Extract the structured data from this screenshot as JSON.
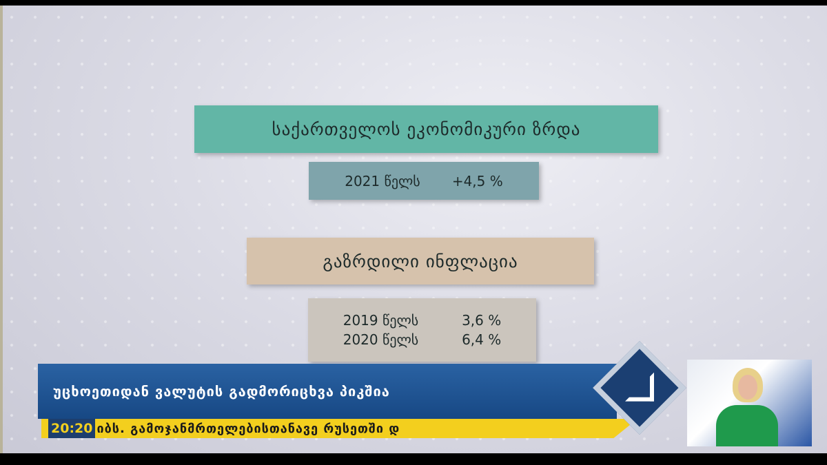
{
  "growth": {
    "title": "საქართველოს ეკონომიკური ზრდა",
    "year": "2021 წელს",
    "value": "+4,5 %"
  },
  "inflation": {
    "title": "გაზრდილი ინფლაცია",
    "rows": [
      {
        "year": "2019 წელს",
        "value": "3,6 %"
      },
      {
        "year": "2020 წელს",
        "value": "6,4 %"
      }
    ]
  },
  "lower_third": {
    "headline": "უცხოეთიდან ვალუტის გადმორიცხვა პიკშია",
    "time": "20:20",
    "ticker": "იბს. გამოჯანმრთელებისთანავე რუსეთში დ"
  },
  "colors": {
    "teal": "#62b6a6",
    "tan": "#d6c2ac",
    "blue_bar": "#1d4f8c",
    "ticker_yellow": "#f3cf1e"
  },
  "icons": {
    "channel_logo": "diamond-logo-icon"
  }
}
